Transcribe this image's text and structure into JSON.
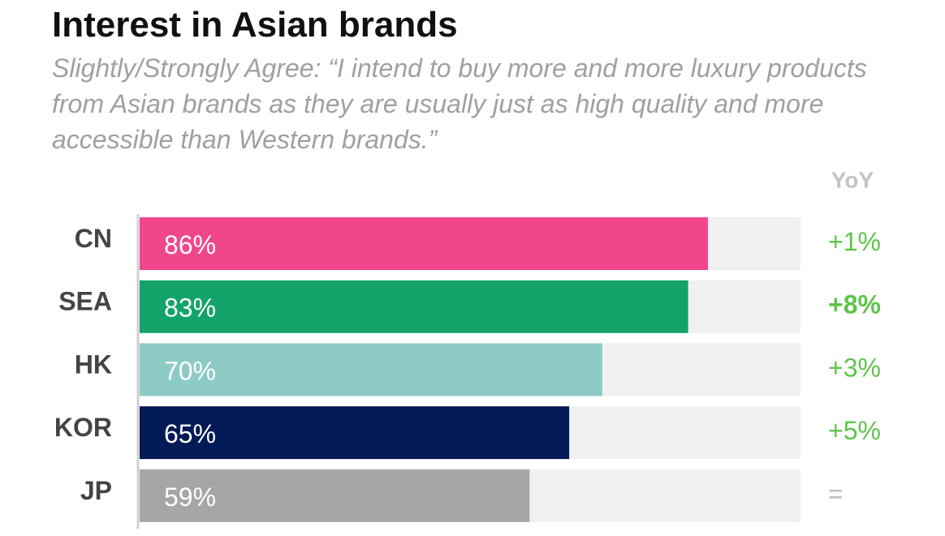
{
  "chart_data": {
    "type": "hbar",
    "title": "Interest in Asian brands",
    "subtitle": "Slightly/Strongly Agree: “I intend to buy more and more luxury products from Asian brands as they are usually just as high quality and more accessible than Western brands.”",
    "categories": [
      "CN",
      "SEA",
      "HK",
      "KOR",
      "JP"
    ],
    "values": [
      86,
      83,
      70,
      65,
      59
    ],
    "value_labels": [
      "86%",
      "83%",
      "70%",
      "65%",
      "59%"
    ],
    "colors": [
      "#f0468c",
      "#13a36a",
      "#8ecbc7",
      "#021a55",
      "#a6a6a6"
    ],
    "xlim": [
      0,
      100
    ],
    "yoy_title": "YoY",
    "yoy": [
      "+1%",
      "+8%",
      "+3%",
      "+5%",
      "="
    ],
    "yoy_colors": [
      "#5ec44a",
      "#5ec44a",
      "#5ec44a",
      "#5ec44a",
      "#bdbdbd"
    ],
    "yoy_bold": [
      false,
      true,
      false,
      false,
      false
    ]
  }
}
